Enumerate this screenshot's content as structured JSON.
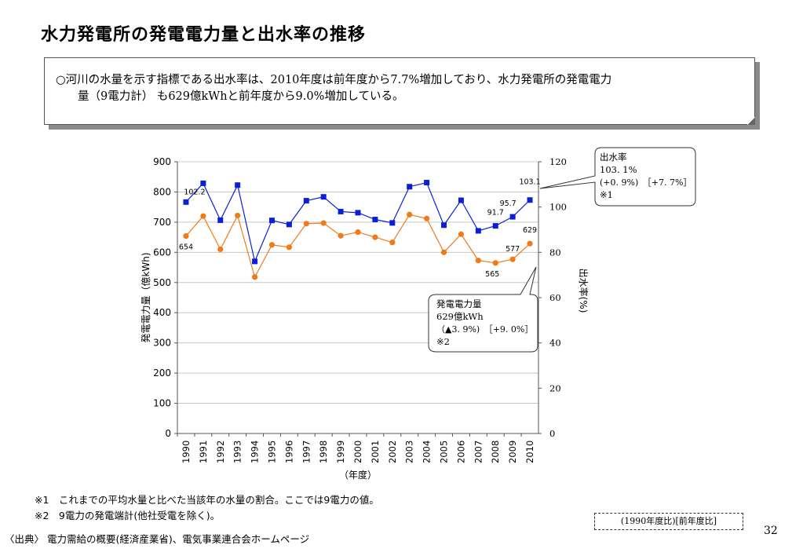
{
  "page_title": "水力発電所の発電電力量と出水率の推移",
  "summary": {
    "line1": "○河川の水量を示す指標である出水率は、2010年度は前年度から7.7%増加しており、水力発電所の発電電力",
    "line2": "量（9電力計） も629億kWhと前年度から9.0%増加している。"
  },
  "colors": {
    "flow_rate": "#0a1fd6",
    "generation": "#f07a18",
    "grid": "#c8c8c8"
  },
  "chart_data": {
    "type": "line",
    "categories": [
      "1990",
      "1991",
      "1992",
      "1993",
      "1994",
      "1995",
      "1996",
      "1997",
      "1998",
      "1999",
      "2000",
      "2001",
      "2002",
      "2003",
      "2004",
      "2005",
      "2006",
      "2007",
      "2008",
      "2009",
      "2010"
    ],
    "xlabel": "（年度）",
    "ylabel_left": "発電電力量（億kWh)",
    "ylabel_right": "出水率(%)",
    "ylim_left": [
      0,
      900
    ],
    "ylim_right": [
      0,
      120
    ],
    "yticks_left": [
      "0",
      "100",
      "200",
      "300",
      "400",
      "500",
      "600",
      "700",
      "800",
      "900"
    ],
    "yticks_right": [
      "0",
      "20",
      "40",
      "60",
      "80",
      "100",
      "120"
    ],
    "grid": true,
    "series": [
      {
        "key": "flow",
        "axis": "right",
        "values": [
          102.2,
          110.5,
          94.2,
          109.7,
          76.0,
          94.1,
          92.3,
          102.8,
          104.5,
          98.0,
          97.5,
          94.5,
          93.0,
          109.0,
          110.8,
          92.0,
          103.0,
          89.5,
          91.7,
          95.7,
          103.1
        ]
      },
      {
        "key": "gen",
        "axis": "left",
        "values": [
          654,
          720,
          610,
          722,
          518,
          625,
          617,
          695,
          697,
          655,
          667,
          650,
          633,
          725,
          712,
          600,
          660,
          573,
          565,
          577,
          629
        ]
      }
    ],
    "data_labels": [
      {
        "series": "flow",
        "index": 0,
        "text": "102.2"
      },
      {
        "series": "flow",
        "index": 18,
        "text": "91.7"
      },
      {
        "series": "flow",
        "index": 19,
        "text": "95.7"
      },
      {
        "series": "flow",
        "index": 20,
        "text": "103.1"
      },
      {
        "series": "gen",
        "index": 0,
        "text": "654"
      },
      {
        "series": "gen",
        "index": 18,
        "text": "565"
      },
      {
        "series": "gen",
        "index": 19,
        "text": "577"
      },
      {
        "series": "gen",
        "index": 20,
        "text": "629"
      }
    ],
    "callouts": {
      "flow": [
        "出水率",
        "103. 1%",
        "(+0. 9%)　［+7. 7%］",
        "※1"
      ],
      "gen": [
        "発電電力量",
        "629億kWh",
        "（▲3. 9%)　［+9. 0%］",
        "※2"
      ]
    }
  },
  "footnotes": [
    "※1　これまでの平均水量と比べた当該年の水量の割合。ここでは9電力の値。",
    "※2　9電力の発電端計(他社受電を除く)。"
  ],
  "source": "〈出典〉 電力需給の概要(経済産業省)、電気事業連合会ホームページ",
  "legend_note": "(1990年度比)[前年度比]",
  "page_number": "32"
}
